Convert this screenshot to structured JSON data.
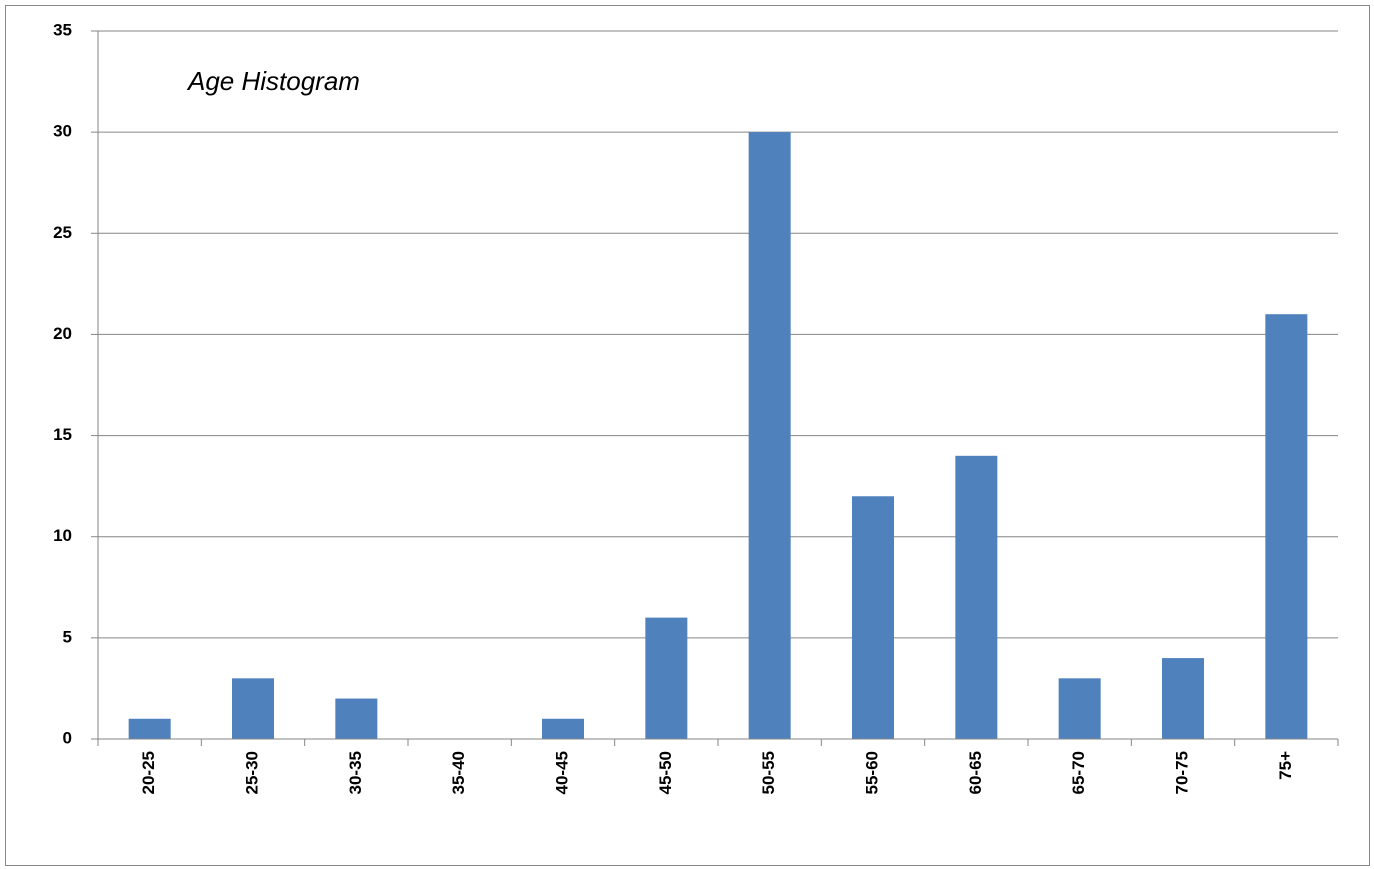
{
  "chart_data": {
    "type": "bar",
    "title": "Age Histogram",
    "categories": [
      "20-25",
      "25-30",
      "30-35",
      "35-40",
      "40-45",
      "45-50",
      "50-55",
      "55-60",
      "60-65",
      "65-70",
      "70-75",
      "75+"
    ],
    "values": [
      1,
      3,
      2,
      0,
      1,
      6,
      30,
      12,
      14,
      3,
      4,
      21
    ],
    "color": "#4f81bd",
    "ylim": [
      0,
      35
    ],
    "yticks": [
      0,
      5,
      10,
      15,
      20,
      25,
      30,
      35
    ],
    "grid": true
  }
}
